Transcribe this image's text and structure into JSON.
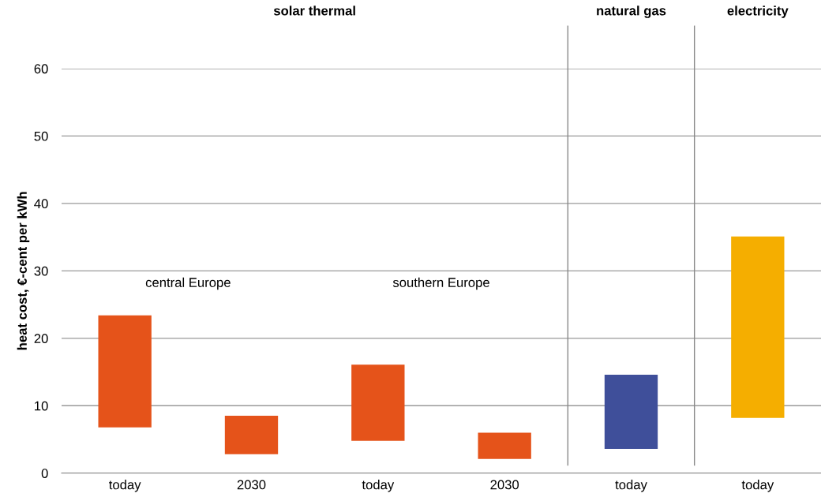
{
  "chart_data": {
    "type": "bar",
    "ylabel": "heat cost, €-cent per kWh",
    "categories": [
      "today",
      "2030",
      "today",
      "2030",
      "today",
      "today"
    ],
    "base": [
      6.8,
      2.8,
      4.8,
      2.1,
      3.6,
      8.2
    ],
    "values": [
      16.6,
      5.7,
      11.3,
      3.9,
      11.0,
      26.9
    ],
    "colors": [
      "#e5531a",
      "#e5531a",
      "#e5531a",
      "#e5531a",
      "#3f4f9a",
      "#f5ae00"
    ],
    "ylim": [
      0,
      60
    ],
    "yticks": [
      0,
      10,
      20,
      30,
      40,
      50,
      60
    ],
    "grid": "y",
    "legend": false,
    "annotations": [
      "solar thermal",
      "natural gas",
      "electricity",
      "central Europe",
      "southern Europe"
    ]
  }
}
